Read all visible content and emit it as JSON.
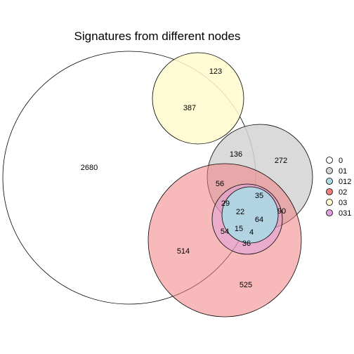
{
  "title": "Signatures from different nodes",
  "sets": [
    {
      "key": "s0",
      "label": "0",
      "color": "#ffffff",
      "fill_opacity": 0.0
    },
    {
      "key": "s01",
      "label": "01",
      "color": "#d3d3d3",
      "fill_opacity": 0.85
    },
    {
      "key": "s012",
      "label": "012",
      "color": "#add8e6",
      "fill_opacity": 0.9
    },
    {
      "key": "s02",
      "label": "02",
      "color": "#f08080",
      "fill_opacity": 0.55
    },
    {
      "key": "s03",
      "label": "03",
      "color": "#fffacd",
      "fill_opacity": 0.85
    },
    {
      "key": "s031",
      "label": "031",
      "color": "#dda0dd",
      "fill_opacity": 0.5
    }
  ],
  "region_values": [
    "2680",
    "387",
    "123",
    "136",
    "272",
    "56",
    "35",
    "29",
    "22",
    "64",
    "90",
    "54",
    "15",
    "4",
    "36",
    "514",
    "525"
  ],
  "legend_labels": [
    "0",
    "01",
    "012",
    "02",
    "03",
    "031"
  ]
}
